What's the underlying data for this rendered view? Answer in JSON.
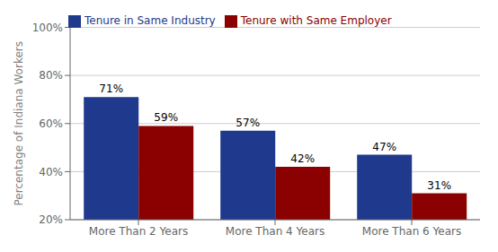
{
  "chart_data": {
    "type": "bar",
    "categories": [
      "More Than 2 Years",
      "More Than 4 Years",
      "More Than 6 Years"
    ],
    "series": [
      {
        "name": "Tenure in Same Industry",
        "color": "#1F3A8C",
        "values": [
          71,
          57,
          47
        ],
        "value_labels": [
          "71%",
          "57%",
          "47%"
        ]
      },
      {
        "name": "Tenure with Same Employer",
        "color": "#8B0000",
        "values": [
          59,
          42,
          31
        ],
        "value_labels": [
          "59%",
          "42%",
          "31%"
        ]
      }
    ],
    "ylabel": "Percentage of Indiana Workers",
    "ylim": [
      20,
      100
    ],
    "yticks": [
      {
        "value": 20,
        "label": "20%"
      },
      {
        "value": 40,
        "label": "40%"
      },
      {
        "value": 60,
        "label": "60%"
      },
      {
        "value": 80,
        "label": "80%"
      },
      {
        "value": 100,
        "label": "100%"
      }
    ],
    "grid": true,
    "legend": "upper left",
    "data_labels": true
  }
}
